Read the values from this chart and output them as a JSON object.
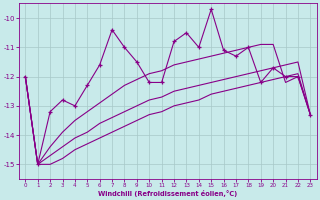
{
  "xlabel": "Windchill (Refroidissement éolien,°C)",
  "bg_color": "#c8eaea",
  "grid_color": "#a8c8c8",
  "line_color": "#880088",
  "xlim": [
    -0.5,
    23.5
  ],
  "ylim": [
    -15.5,
    -9.5
  ],
  "yticks": [
    -15,
    -14,
    -13,
    -12,
    -11,
    -10
  ],
  "xticks": [
    0,
    1,
    2,
    3,
    4,
    5,
    6,
    7,
    8,
    9,
    10,
    11,
    12,
    13,
    14,
    15,
    16,
    17,
    18,
    19,
    20,
    21,
    22,
    23
  ],
  "series1_x": [
    0,
    1,
    2,
    3,
    4,
    5,
    6,
    7,
    8,
    9,
    10,
    11,
    12,
    13,
    14,
    15,
    16,
    17,
    18,
    19,
    20,
    21,
    22,
    23
  ],
  "series1_y": [
    -12.0,
    -15.0,
    -13.2,
    -12.8,
    -13.0,
    -12.3,
    -11.6,
    -10.4,
    -11.0,
    -11.5,
    -12.2,
    -12.2,
    -10.8,
    -10.5,
    -11.0,
    -9.7,
    -11.1,
    -11.3,
    -11.0,
    -12.2,
    -11.7,
    -12.0,
    -12.0,
    -13.3
  ],
  "series2_x": [
    0,
    1,
    2,
    3,
    4,
    5,
    6,
    7,
    8,
    9,
    10,
    11,
    12,
    13,
    14,
    15,
    16,
    17,
    18,
    19,
    20,
    21,
    22,
    23
  ],
  "series2_y": [
    -12.0,
    -15.0,
    -14.4,
    -13.9,
    -13.5,
    -13.2,
    -12.9,
    -12.6,
    -12.3,
    -12.1,
    -11.9,
    -11.8,
    -11.6,
    -11.5,
    -11.4,
    -11.3,
    -11.2,
    -11.1,
    -11.0,
    -10.9,
    -10.9,
    -12.2,
    -12.0,
    -13.3
  ],
  "series3_x": [
    0,
    1,
    2,
    3,
    4,
    5,
    6,
    7,
    8,
    9,
    10,
    11,
    12,
    13,
    14,
    15,
    16,
    17,
    18,
    19,
    20,
    21,
    22,
    23
  ],
  "series3_y": [
    -12.0,
    -15.0,
    -14.7,
    -14.4,
    -14.1,
    -13.9,
    -13.6,
    -13.4,
    -13.2,
    -13.0,
    -12.8,
    -12.7,
    -12.5,
    -12.4,
    -12.3,
    -12.2,
    -12.1,
    -12.0,
    -11.9,
    -11.8,
    -11.7,
    -11.6,
    -11.5,
    -13.3
  ],
  "series4_x": [
    0,
    1,
    2,
    3,
    4,
    5,
    6,
    7,
    8,
    9,
    10,
    11,
    12,
    13,
    14,
    15,
    16,
    17,
    18,
    19,
    20,
    21,
    22,
    23
  ],
  "series4_y": [
    -12.0,
    -15.0,
    -15.0,
    -14.8,
    -14.5,
    -14.3,
    -14.1,
    -13.9,
    -13.7,
    -13.5,
    -13.3,
    -13.2,
    -13.0,
    -12.9,
    -12.8,
    -12.6,
    -12.5,
    -12.4,
    -12.3,
    -12.2,
    -12.1,
    -12.0,
    -11.9,
    -13.3
  ]
}
